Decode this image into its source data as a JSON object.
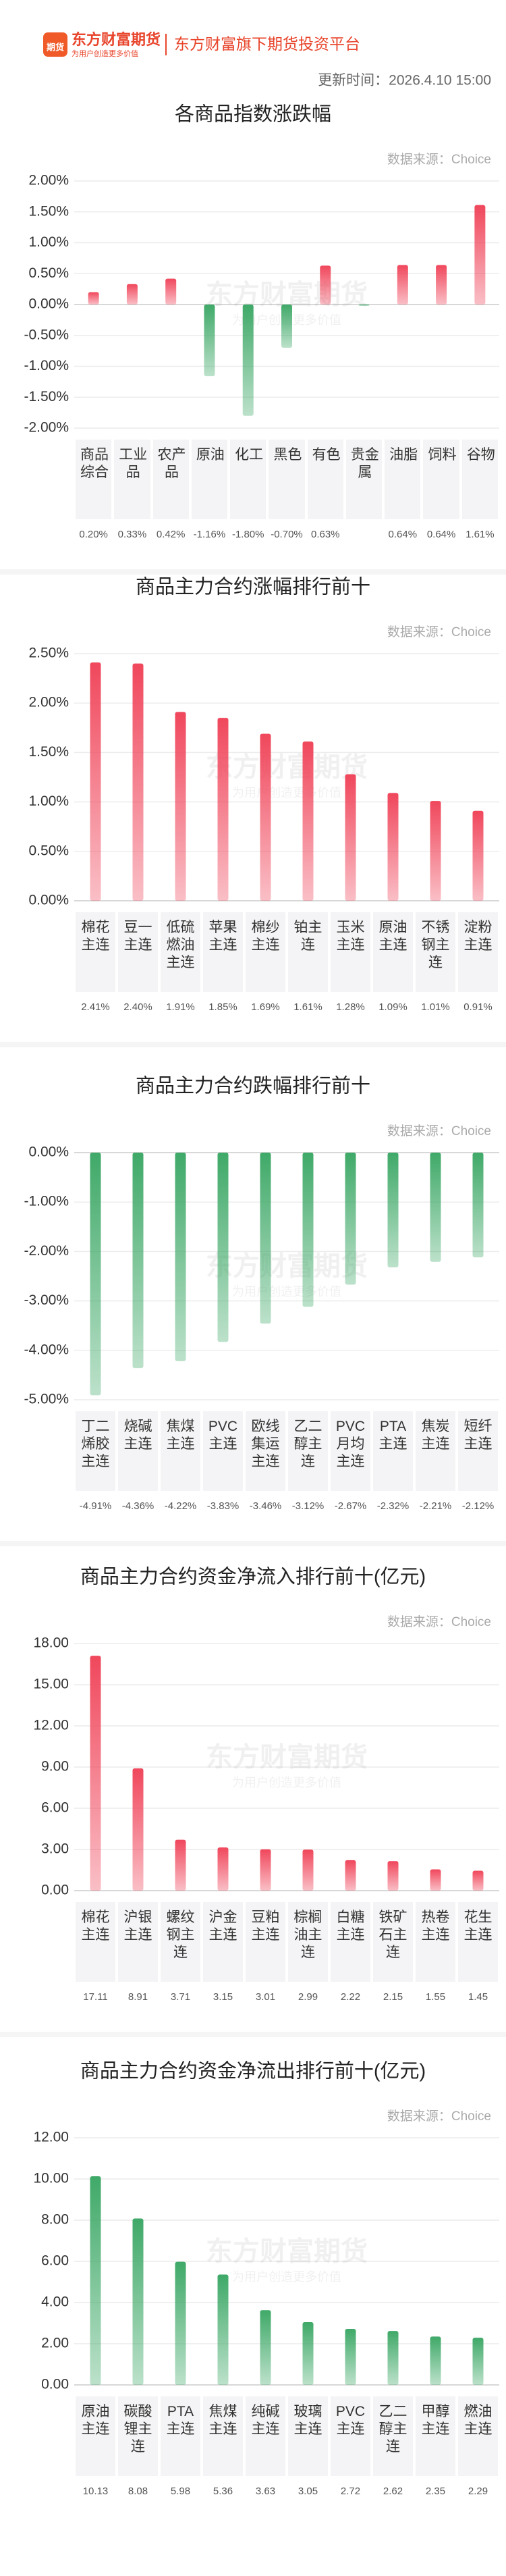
{
  "header": {
    "icon": "期货",
    "brand": "东方财富期货",
    "slogan": "为用户创造更多价值",
    "platform": "东方财富旗下期货投资平台",
    "update_time": "更新时间：2026.4.10 15:00"
  },
  "watermark": {
    "brand": "东方财富期货",
    "slogan": "为用户创造更多价值"
  },
  "chart_data": [
    {
      "type": "bar",
      "title": "各商品指数涨跌幅",
      "source": "数据来源：Choice",
      "colors": {
        "up": "#f0475c",
        "down": "#3fa968"
      },
      "grid": true,
      "categories": [
        "商品综合",
        "工业品",
        "农产品",
        "原油",
        "化工",
        "黑色",
        "有色",
        "贵金属",
        "油脂",
        "饲料",
        "谷物"
      ],
      "values": [
        0.2,
        0.33,
        0.42,
        -1.16,
        -1.8,
        -0.7,
        0.63,
        -0.02,
        0.64,
        0.64,
        1.61
      ],
      "value_labels": [
        "0.20%",
        "0.33%",
        "0.42%",
        "-1.16%",
        "-1.80%",
        "-0.70%",
        "0.63%",
        null,
        "0.64%",
        "0.64%",
        "1.61%"
      ],
      "ylim": [
        -2,
        2
      ],
      "yticks": [
        {
          "value": 2,
          "label": "2.00%"
        },
        {
          "value": 1.5,
          "label": "1.50%"
        },
        {
          "value": 1,
          "label": "1.00%"
        },
        {
          "value": 0.5,
          "label": "0.50%"
        },
        {
          "value": 0,
          "label": "0.00%"
        },
        {
          "value": -0.5,
          "label": "-0.50%"
        },
        {
          "value": -1,
          "label": "-1.00%"
        },
        {
          "value": -1.5,
          "label": "-1.50%"
        },
        {
          "value": -2,
          "label": "-2.00%"
        }
      ]
    },
    {
      "type": "bar",
      "title": "商品主力合约涨幅排行前十",
      "source": "数据来源：Choice",
      "color": "#f0475c",
      "grid": true,
      "categories": [
        "棉花主连",
        "豆一主连",
        "低硫燃油主连",
        "苹果主连",
        "棉纱主连",
        "铂主连",
        "玉米主连",
        "原油主连",
        "不锈钢主连",
        "淀粉主连"
      ],
      "values": [
        2.41,
        2.4,
        1.91,
        1.85,
        1.69,
        1.61,
        1.28,
        1.09,
        1.01,
        0.91
      ],
      "value_labels": [
        "2.41%",
        "2.40%",
        "1.91%",
        "1.85%",
        "1.69%",
        "1.61%",
        "1.28%",
        "1.09%",
        "1.01%",
        "0.91%"
      ],
      "ylim": [
        0,
        2.5
      ],
      "yticks": [
        {
          "value": 2.5,
          "label": "2.50%"
        },
        {
          "value": 2,
          "label": "2.00%"
        },
        {
          "value": 1.5,
          "label": "1.50%"
        },
        {
          "value": 1,
          "label": "1.00%"
        },
        {
          "value": 0.5,
          "label": "0.50%"
        },
        {
          "value": 0,
          "label": "0.00%"
        }
      ]
    },
    {
      "type": "bar",
      "title": "商品主力合约跌幅排行前十",
      "source": "数据来源：Choice",
      "color": "#3fa968",
      "grid": true,
      "categories": [
        "丁二烯胶主连",
        "烧碱主连",
        "焦煤主连",
        "PVC主连",
        "欧线集运主连",
        "乙二醇主连",
        "PVC月均主连",
        "PTA主连",
        "焦炭主连",
        "短纤主连"
      ],
      "values": [
        -4.91,
        -4.36,
        -4.22,
        -3.83,
        -3.46,
        -3.12,
        -2.67,
        -2.32,
        -2.21,
        -2.12
      ],
      "value_labels": [
        "-4.91%",
        "-4.36%",
        "-4.22%",
        "-3.83%",
        "-3.46%",
        "-3.12%",
        "-2.67%",
        "-2.32%",
        "-2.21%",
        "-2.12%"
      ],
      "ylim": [
        -5,
        0
      ],
      "yticks": [
        {
          "value": 0,
          "label": "0.00%"
        },
        {
          "value": -1,
          "label": "-1.00%"
        },
        {
          "value": -2,
          "label": "-2.00%"
        },
        {
          "value": -3,
          "label": "-3.00%"
        },
        {
          "value": -4,
          "label": "-4.00%"
        },
        {
          "value": -5,
          "label": "-5.00%"
        }
      ]
    },
    {
      "type": "bar",
      "title": "商品主力合约资金净流入排行前十(亿元)",
      "source": "数据来源：Choice",
      "color": "#f0475c",
      "grid": true,
      "categories": [
        "棉花主连",
        "沪银主连",
        "螺纹钢主连",
        "沪金主连",
        "豆粕主连",
        "棕榈油主连",
        "白糖主连",
        "铁矿石主连",
        "热卷主连",
        "花生主连"
      ],
      "values": [
        17.11,
        8.91,
        3.71,
        3.15,
        3.01,
        2.99,
        2.22,
        2.15,
        1.55,
        1.45
      ],
      "ylim": [
        0,
        18
      ],
      "yticks": [
        {
          "value": 18,
          "label": "18.00"
        },
        {
          "value": 15,
          "label": "15.00"
        },
        {
          "value": 12,
          "label": "12.00"
        },
        {
          "value": 9,
          "label": "9.00"
        },
        {
          "value": 6,
          "label": "6.00"
        },
        {
          "value": 3,
          "label": "3.00"
        },
        {
          "value": 0,
          "label": "0.00"
        }
      ]
    },
    {
      "type": "bar",
      "title": "商品主力合约资金净流出排行前十(亿元)",
      "source": "数据来源：Choice",
      "color": "#3fa968",
      "grid": true,
      "categories": [
        "原油主连",
        "碳酸锂主连",
        "PTA主连",
        "焦煤主连",
        "纯碱主连",
        "玻璃主连",
        "PVC主连",
        "乙二醇主连",
        "甲醇主连",
        "燃油主连"
      ],
      "values": [
        10.13,
        8.08,
        5.98,
        5.36,
        3.63,
        3.05,
        2.72,
        2.62,
        2.35,
        2.29
      ],
      "ylim": [
        0,
        12
      ],
      "yticks": [
        {
          "value": 12,
          "label": "12.00"
        },
        {
          "value": 10,
          "label": "10.00"
        },
        {
          "value": 8,
          "label": "8.00"
        },
        {
          "value": 6,
          "label": "6.00"
        },
        {
          "value": 4,
          "label": "4.00"
        },
        {
          "value": 2,
          "label": "2.00"
        },
        {
          "value": 0,
          "label": "0.00"
        }
      ]
    }
  ]
}
